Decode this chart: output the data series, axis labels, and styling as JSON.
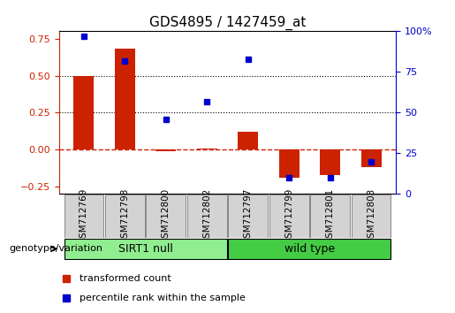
{
  "title": "GDS4895 / 1427459_at",
  "samples": [
    "GSM712769",
    "GSM712798",
    "GSM712800",
    "GSM712802",
    "GSM712797",
    "GSM712799",
    "GSM712801",
    "GSM712803"
  ],
  "red_bars": [
    0.5,
    0.68,
    -0.01,
    0.01,
    0.12,
    -0.19,
    -0.17,
    -0.12
  ],
  "blue_dots": [
    0.97,
    0.82,
    0.46,
    0.57,
    0.83,
    0.1,
    0.1,
    0.2
  ],
  "groups": [
    {
      "label": "SIRT1 null",
      "indices": [
        0,
        1,
        2,
        3
      ],
      "color": "#90EE90"
    },
    {
      "label": "wild type",
      "indices": [
        4,
        5,
        6,
        7
      ],
      "color": "#44CC44"
    }
  ],
  "group_label": "genotype/variation",
  "ylim": [
    -0.3,
    0.8
  ],
  "y2lim": [
    0.0,
    1.0
  ],
  "yticks": [
    -0.25,
    0.0,
    0.25,
    0.5,
    0.75
  ],
  "y2ticks": [
    0,
    0.25,
    0.5,
    0.75,
    1.0
  ],
  "y2ticklabels": [
    "0",
    "25",
    "50",
    "75",
    "100%"
  ],
  "hlines": [
    0.25,
    0.5
  ],
  "bar_color": "#CC2200",
  "dot_color": "#0000CC",
  "zero_line_color": "#CC2200",
  "tick_label_color_left": "#CC2200",
  "tick_label_color_right": "#0000CC",
  "legend_items": [
    {
      "label": "transformed count",
      "color": "#CC2200"
    },
    {
      "label": "percentile rank within the sample",
      "color": "#0000CC"
    }
  ],
  "bar_width": 0.5
}
